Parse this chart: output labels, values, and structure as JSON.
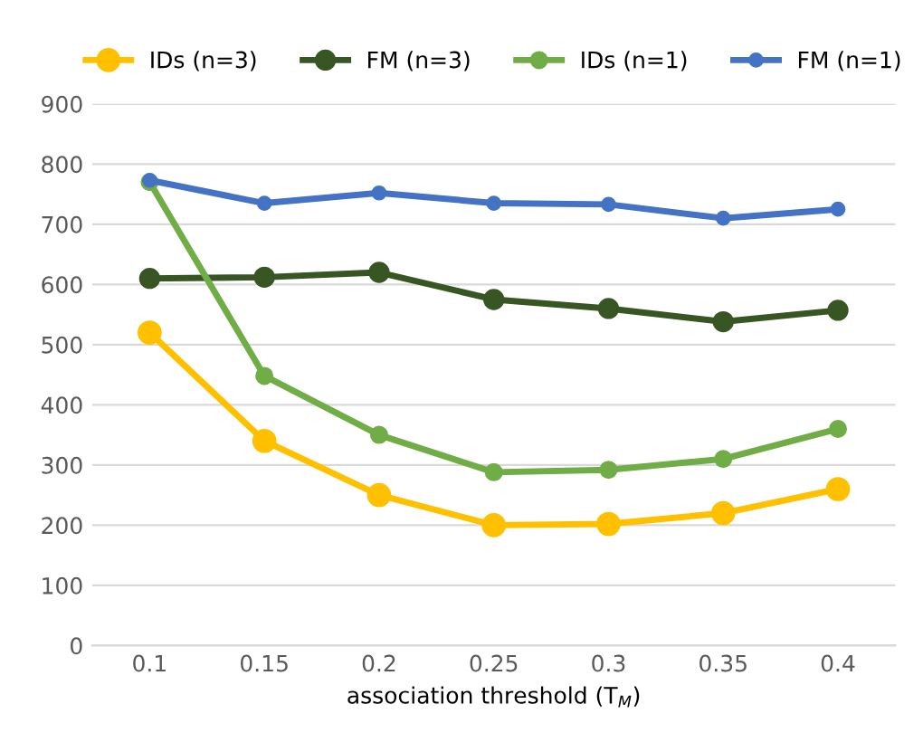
{
  "chart_data": {
    "type": "line",
    "xlabel": "association threshold (T$_{M}$)",
    "categories": [
      "0.1",
      "0.15",
      "0.2",
      "0.25",
      "0.3",
      "0.35",
      "0.4"
    ],
    "series": [
      {
        "name": "IDs (n=3)",
        "color": "#ffc000",
        "values": [
          520,
          340,
          250,
          200,
          202,
          220,
          260
        ]
      },
      {
        "name": "FM (n=3)",
        "color": "#375623",
        "values": [
          610,
          612,
          620,
          575,
          560,
          538,
          557
        ]
      },
      {
        "name": "IDs (n=1)",
        "color": "#70ad47",
        "values": [
          770,
          448,
          350,
          288,
          292,
          310,
          360
        ]
      },
      {
        "name": "FM (n=1)",
        "color": "#4472c4",
        "values": [
          773,
          735,
          752,
          735,
          733,
          710,
          725
        ]
      }
    ],
    "ylim": [
      0,
      900
    ],
    "yticks": [
      0,
      100,
      200,
      300,
      400,
      500,
      600,
      700,
      800,
      900
    ],
    "grid": "y",
    "legend": "top",
    "marker": "circle",
    "line_style": "solid"
  }
}
